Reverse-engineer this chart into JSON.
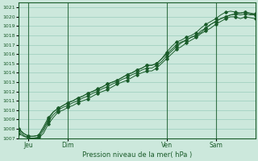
{
  "title": "",
  "xlabel": "Pression niveau de la mer( hPa )",
  "background_color": "#cce8dc",
  "plot_bg_color": "#cce8dc",
  "grid_color": "#99ccbb",
  "line_color": "#1a5c2a",
  "ylim": [
    1007,
    1021.5
  ],
  "yticks": [
    1007,
    1008,
    1009,
    1010,
    1011,
    1012,
    1013,
    1014,
    1015,
    1016,
    1017,
    1018,
    1019,
    1020,
    1021
  ],
  "xlim": [
    0,
    96
  ],
  "xtick_positions": [
    4,
    20,
    60,
    80
  ],
  "xtick_labels": [
    "Jeu",
    "Dim",
    "Ven",
    "Sam"
  ],
  "vline_positions": [
    4,
    20,
    60,
    80
  ],
  "series1_x": [
    0,
    2,
    4,
    6,
    8,
    10,
    12,
    14,
    16,
    18,
    20,
    22,
    24,
    26,
    28,
    30,
    32,
    34,
    36,
    38,
    40,
    42,
    44,
    46,
    48,
    50,
    52,
    54,
    56,
    58,
    60,
    62,
    64,
    66,
    68,
    70,
    72,
    74,
    76,
    78,
    80,
    82,
    84,
    86,
    88,
    90,
    92,
    94,
    96
  ],
  "series1": [
    1008.0,
    1007.5,
    1007.2,
    1007.2,
    1007.3,
    1008.0,
    1009.0,
    1009.8,
    1010.2,
    1010.5,
    1010.8,
    1011.0,
    1011.3,
    1011.5,
    1011.8,
    1012.0,
    1012.2,
    1012.5,
    1012.8,
    1013.0,
    1013.2,
    1013.5,
    1013.8,
    1014.0,
    1014.3,
    1014.5,
    1014.8,
    1014.8,
    1015.0,
    1015.5,
    1016.0,
    1016.5,
    1017.0,
    1017.3,
    1017.5,
    1017.8,
    1018.0,
    1018.3,
    1018.8,
    1019.2,
    1019.5,
    1019.8,
    1020.0,
    1020.2,
    1020.3,
    1020.4,
    1020.5,
    1020.4,
    1020.3
  ],
  "series2": [
    1008.0,
    1007.5,
    1007.2,
    1007.2,
    1007.3,
    1008.2,
    1009.2,
    1009.8,
    1010.2,
    1010.5,
    1010.8,
    1011.0,
    1011.3,
    1011.5,
    1011.8,
    1012.0,
    1012.3,
    1012.5,
    1012.8,
    1013.0,
    1013.2,
    1013.5,
    1013.8,
    1014.0,
    1014.3,
    1014.5,
    1014.8,
    1014.8,
    1015.0,
    1015.5,
    1016.2,
    1016.8,
    1017.3,
    1017.5,
    1017.8,
    1018.0,
    1018.3,
    1018.8,
    1019.2,
    1019.5,
    1019.8,
    1020.2,
    1020.5,
    1020.6,
    1020.5,
    1020.4,
    1020.5,
    1020.3,
    1020.3
  ],
  "series3": [
    1007.8,
    1007.3,
    1007.0,
    1007.0,
    1007.1,
    1007.8,
    1008.8,
    1009.5,
    1010.0,
    1010.3,
    1010.5,
    1010.8,
    1011.0,
    1011.3,
    1011.5,
    1011.8,
    1012.0,
    1012.3,
    1012.5,
    1012.8,
    1013.0,
    1013.3,
    1013.5,
    1013.8,
    1014.0,
    1014.3,
    1014.5,
    1014.5,
    1014.8,
    1015.2,
    1015.8,
    1016.3,
    1016.8,
    1017.2,
    1017.5,
    1017.8,
    1018.0,
    1018.5,
    1018.8,
    1019.2,
    1019.5,
    1019.8,
    1020.0,
    1020.2,
    1020.3,
    1020.2,
    1020.3,
    1020.2,
    1020.2
  ],
  "series4": [
    1007.5,
    1007.2,
    1007.0,
    1007.0,
    1007.0,
    1007.5,
    1008.5,
    1009.2,
    1009.8,
    1010.0,
    1010.3,
    1010.5,
    1010.8,
    1011.0,
    1011.2,
    1011.5,
    1011.8,
    1012.0,
    1012.2,
    1012.5,
    1012.8,
    1013.0,
    1013.2,
    1013.5,
    1013.8,
    1014.0,
    1014.2,
    1014.2,
    1014.5,
    1015.0,
    1015.5,
    1016.0,
    1016.5,
    1016.8,
    1017.2,
    1017.5,
    1017.8,
    1018.2,
    1018.5,
    1018.8,
    1019.2,
    1019.5,
    1019.8,
    1020.0,
    1020.0,
    1019.8,
    1020.0,
    1019.9,
    1019.8
  ]
}
